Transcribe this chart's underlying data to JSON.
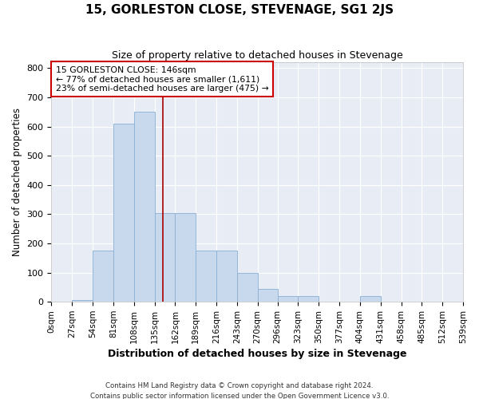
{
  "title": "15, GORLESTON CLOSE, STEVENAGE, SG1 2JS",
  "subtitle": "Size of property relative to detached houses in Stevenage",
  "xlabel": "Distribution of detached houses by size in Stevenage",
  "ylabel": "Number of detached properties",
  "bar_color": "#c8d9ee",
  "bar_edge_color": "#8aafd4",
  "background_color": "#e8edf5",
  "grid_color": "#ffffff",
  "red_line_x": 146,
  "annotation_line1": "15 GORLESTON CLOSE: 146sqm",
  "annotation_line2": "← 77% of detached houses are smaller (1,611)",
  "annotation_line3": "23% of semi-detached houses are larger (475) →",
  "annotation_box_color": "#ffffff",
  "annotation_box_edge_color": "#cc0000",
  "bin_edges": [
    0,
    27,
    54,
    81,
    108,
    135,
    162,
    189,
    216,
    243,
    270,
    296,
    323,
    350,
    377,
    404,
    431,
    458,
    485,
    512,
    539
  ],
  "bar_heights": [
    0,
    5,
    175,
    610,
    650,
    305,
    305,
    175,
    175,
    100,
    45,
    20,
    20,
    0,
    0,
    20,
    0,
    0,
    0,
    0
  ],
  "ylim": [
    0,
    820
  ],
  "yticks": [
    0,
    100,
    200,
    300,
    400,
    500,
    600,
    700,
    800
  ],
  "footnote1": "Contains HM Land Registry data © Crown copyright and database right 2024.",
  "footnote2": "Contains public sector information licensed under the Open Government Licence v3.0."
}
